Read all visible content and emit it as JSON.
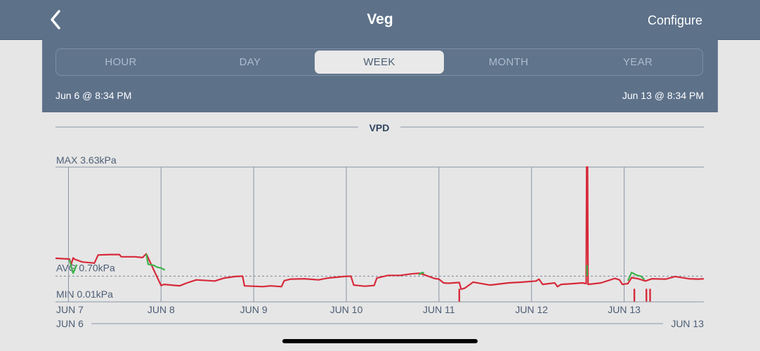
{
  "nav": {
    "title": "Veg",
    "back_icon": "chevron-left-icon",
    "configure_label": "Configure"
  },
  "range_tabs": {
    "items": [
      "HOUR",
      "DAY",
      "WEEK",
      "MONTH",
      "YEAR"
    ],
    "selected": "WEEK"
  },
  "date_range": {
    "start": "Jun 6 @ 8:34 PM",
    "end": "Jun 13 @ 8:34 PM"
  },
  "chart_data": {
    "type": "line",
    "title": "VPD",
    "max_label": "MAX 3.63kPa",
    "avg_label": "AVG 0.70kPa",
    "min_label": "MIN 0.01kPa",
    "max": 3.63,
    "avg": 0.7,
    "min": 0.01,
    "unit": "kPa",
    "ylim": [
      0.01,
      3.63
    ],
    "x_ticks": [
      "JUN 7",
      "JUN 8",
      "JUN 9",
      "JUN 10",
      "JUN 11",
      "JUN 12",
      "JUN 13"
    ],
    "x_tick_days": [
      7,
      8,
      9,
      10,
      11,
      12,
      13
    ],
    "xlim": [
      6.86,
      13.86
    ],
    "range_start_label": "JUN 6",
    "range_end_label": "JUN 13",
    "colors": {
      "out_of_range": "#d72a3a",
      "in_range": "#3cb44b",
      "grid": "#8a95a5"
    },
    "series": [
      {
        "values": [
          [
            6.86,
            1.18
          ],
          [
            6.94,
            1.17
          ],
          [
            7.01,
            1.16
          ],
          [
            7.03,
            1.02
          ],
          [
            7.05,
            1.19
          ],
          [
            7.07,
            1.15
          ],
          [
            7.15,
            1.08
          ],
          [
            7.28,
            1.05
          ],
          [
            7.32,
            1.27
          ],
          [
            7.45,
            1.28
          ],
          [
            7.55,
            1.28
          ],
          [
            7.57,
            1.22
          ],
          [
            7.72,
            1.22
          ],
          [
            7.8,
            1.2
          ],
          [
            7.84,
            1.3
          ],
          [
            8.0,
            0.45
          ],
          [
            8.03,
            0.48
          ],
          [
            8.2,
            0.44
          ],
          [
            8.28,
            0.52
          ],
          [
            8.38,
            0.6
          ],
          [
            8.58,
            0.57
          ],
          [
            8.68,
            0.65
          ],
          [
            8.8,
            0.69
          ],
          [
            8.88,
            0.7
          ],
          [
            8.9,
            0.44
          ],
          [
            9.1,
            0.42
          ],
          [
            9.18,
            0.44
          ],
          [
            9.3,
            0.42
          ],
          [
            9.33,
            0.58
          ],
          [
            9.4,
            0.62
          ],
          [
            9.55,
            0.63
          ],
          [
            9.7,
            0.6
          ],
          [
            9.8,
            0.65
          ],
          [
            9.97,
            0.69
          ],
          [
            10.05,
            0.7
          ],
          [
            10.08,
            0.46
          ],
          [
            10.2,
            0.43
          ],
          [
            10.3,
            0.45
          ],
          [
            10.33,
            0.65
          ],
          [
            10.45,
            0.72
          ],
          [
            10.58,
            0.72
          ],
          [
            10.7,
            0.76
          ],
          [
            10.79,
            0.78
          ],
          [
            10.85,
            0.73
          ],
          [
            10.95,
            0.64
          ],
          [
            11.0,
            0.62
          ],
          [
            11.05,
            0.52
          ],
          [
            11.1,
            0.51
          ],
          [
            11.22,
            0.53
          ],
          [
            11.24,
            0.35
          ],
          [
            11.28,
            0.38
          ],
          [
            11.37,
            0.54
          ],
          [
            11.55,
            0.46
          ],
          [
            11.75,
            0.52
          ],
          [
            11.9,
            0.54
          ],
          [
            12.05,
            0.57
          ],
          [
            12.08,
            0.62
          ],
          [
            12.12,
            0.48
          ],
          [
            12.25,
            0.52
          ],
          [
            12.28,
            0.42
          ],
          [
            12.32,
            0.48
          ],
          [
            12.45,
            0.5
          ],
          [
            12.55,
            0.52
          ],
          [
            12.59,
            0.5
          ],
          [
            12.595,
            3.63
          ],
          [
            12.605,
            3.63
          ],
          [
            12.61,
            0.48
          ],
          [
            12.75,
            0.52
          ],
          [
            12.9,
            0.64
          ],
          [
            12.95,
            0.6
          ],
          [
            12.98,
            0.48
          ],
          [
            13.04,
            0.5
          ],
          [
            13.08,
            0.66
          ],
          [
            13.15,
            0.63
          ],
          [
            13.23,
            0.57
          ],
          [
            13.3,
            0.63
          ],
          [
            13.45,
            0.62
          ],
          [
            13.55,
            0.69
          ],
          [
            13.7,
            0.63
          ],
          [
            13.8,
            0.62
          ],
          [
            13.86,
            0.63
          ]
        ]
      },
      {
        "values": [
          [
            7.01,
            1.14
          ],
          [
            7.05,
            0.78
          ],
          [
            7.09,
            1.01
          ]
        ]
      },
      {
        "values": [
          [
            7.84,
            1.3
          ],
          [
            7.86,
            1.02
          ],
          [
            7.92,
            0.99
          ],
          [
            7.96,
            0.94
          ],
          [
            8.0,
            0.92
          ],
          [
            8.03,
            0.88
          ],
          [
            8.04,
            0.86
          ]
        ]
      },
      {
        "values": [
          [
            10.78,
            0.74
          ],
          [
            10.82,
            0.8
          ],
          [
            10.84,
            0.78
          ]
        ]
      },
      {
        "values": [
          [
            12.59,
            0.98
          ],
          [
            12.6,
            0.98
          ],
          [
            12.6,
            0.72
          ],
          [
            12.61,
            0.72
          ]
        ]
      },
      {
        "values": [
          [
            13.04,
            0.58
          ],
          [
            13.08,
            0.8
          ],
          [
            13.14,
            0.72
          ],
          [
            13.18,
            0.7
          ],
          [
            13.22,
            0.61
          ]
        ]
      }
    ],
    "dips": [
      {
        "x": 11.22,
        "y": 0.02
      },
      {
        "x": 13.11,
        "y": 0.02
      },
      {
        "x": 13.24,
        "y": 0.02
      },
      {
        "x": 13.28,
        "y": 0.02
      }
    ]
  }
}
